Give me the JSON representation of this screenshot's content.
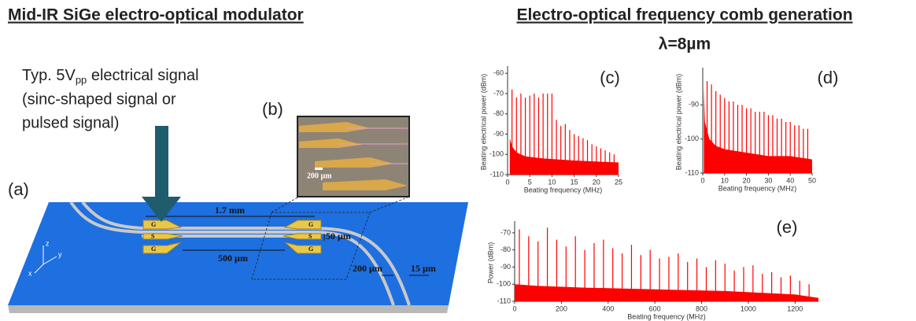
{
  "left": {
    "title": "Mid-IR SiGe electro-optical modulator",
    "signal": {
      "prefix": "Typ. 5V",
      "subscript": "pp",
      "suffix": " electrical signal",
      "line2": "(sinc-shaped signal or",
      "line3": "pulsed signal)"
    },
    "panel_labels": {
      "a": "(a)",
      "b": "(b)"
    },
    "dimensions": [
      "1.7 mm",
      "500 µm",
      "50 µm",
      "200 µm",
      "15 µm"
    ],
    "scale_bar": "200 µm",
    "pads": {
      "left": [
        "G",
        "S",
        "G"
      ],
      "right": [
        "G",
        "S",
        "G"
      ]
    },
    "axes": [
      "z",
      "y",
      "x"
    ]
  },
  "right": {
    "title": "Electro-optical frequency comb generation",
    "wavelength": "λ=8µm"
  },
  "chart_data": [
    {
      "type": "spectrum",
      "panel": "(c)",
      "ylabel": "Beating electrical power (dBm)",
      "xlabel": "Beating frequency (MHz)",
      "xlim": [
        0,
        25
      ],
      "ylim": [
        -110,
        -58
      ],
      "xticks": [
        0,
        5,
        10,
        15,
        20,
        25
      ],
      "yticks": [
        -60,
        -70,
        -80,
        -90,
        -100,
        -110
      ],
      "color": "#ff0000",
      "peaks": {
        "x": [
          1,
          2,
          3,
          4,
          5,
          6,
          7,
          8,
          9,
          10,
          11,
          12,
          13,
          14,
          15,
          16,
          17,
          18,
          19,
          20,
          21,
          22,
          23,
          24
        ],
        "values": [
          -68,
          -72,
          -70,
          -72,
          -71,
          -70,
          -72,
          -70,
          -70,
          -70,
          -83,
          -86,
          -85,
          -88,
          -90,
          -91,
          -92,
          -93,
          -95,
          -96,
          -97,
          -98,
          -99,
          -100
        ]
      },
      "floor": {
        "x": [
          0.5,
          1,
          2,
          4,
          8,
          15,
          25
        ],
        "values": [
          -92,
          -96,
          -99,
          -101,
          -102,
          -103,
          -104
        ]
      }
    },
    {
      "type": "spectrum",
      "panel": "(d)",
      "ylabel": "Beating electrical power (dBm)",
      "xlabel": "Beating frequency (MHz)",
      "xlim": [
        0,
        50
      ],
      "ylim": [
        -110,
        -80
      ],
      "xticks": [
        0,
        10,
        20,
        30,
        40,
        50
      ],
      "yticks": [
        -90,
        -100,
        -110
      ],
      "color": "#ff0000",
      "peaks": {
        "x": [
          2,
          4,
          6,
          8,
          10,
          12,
          14,
          16,
          18,
          20,
          22,
          24,
          26,
          28,
          30,
          32,
          34,
          36,
          38,
          40,
          42,
          44,
          46,
          48
        ],
        "values": [
          -83,
          -84,
          -86,
          -87,
          -88,
          -89,
          -89,
          -90,
          -90,
          -91,
          -91,
          -92,
          -92,
          -92,
          -93,
          -93,
          -94,
          -94,
          -95,
          -95,
          -96,
          -96,
          -97,
          -97
        ]
      },
      "floor": {
        "x": [
          0.5,
          1,
          3,
          6,
          10,
          20,
          30,
          40,
          50
        ],
        "values": [
          -85,
          -95,
          -100,
          -102,
          -103,
          -104,
          -105,
          -105,
          -106
        ]
      }
    },
    {
      "type": "spectrum",
      "panel": "(e)",
      "ylabel": "Power (dBm)",
      "xlabel": "Beating frequency (MHz)",
      "xlim": [
        0,
        1300
      ],
      "ylim": [
        -110,
        -65
      ],
      "xticks": [
        0,
        200,
        400,
        600,
        800,
        1000,
        1200
      ],
      "yticks": [
        -70,
        -80,
        -90,
        -100,
        -110
      ],
      "color": "#ff0000",
      "peaks": {
        "x": [
          20,
          60,
          100,
          140,
          180,
          220,
          260,
          300,
          340,
          380,
          420,
          460,
          500,
          540,
          580,
          620,
          660,
          700,
          740,
          780,
          820,
          860,
          900,
          940,
          980,
          1020,
          1060,
          1100,
          1140,
          1180,
          1220,
          1260
        ],
        "values": [
          -68,
          -72,
          -75,
          -67,
          -74,
          -78,
          -72,
          -80,
          -76,
          -74,
          -79,
          -82,
          -77,
          -83,
          -80,
          -85,
          -84,
          -82,
          -87,
          -85,
          -90,
          -86,
          -88,
          -92,
          -90,
          -89,
          -94,
          -93,
          -96,
          -95,
          -98,
          -100
        ]
      },
      "floor": {
        "x": [
          0,
          100,
          300,
          600,
          900,
          1200,
          1300
        ],
        "values": [
          -100,
          -101,
          -102,
          -103,
          -104,
          -106,
          -108
        ]
      }
    }
  ]
}
